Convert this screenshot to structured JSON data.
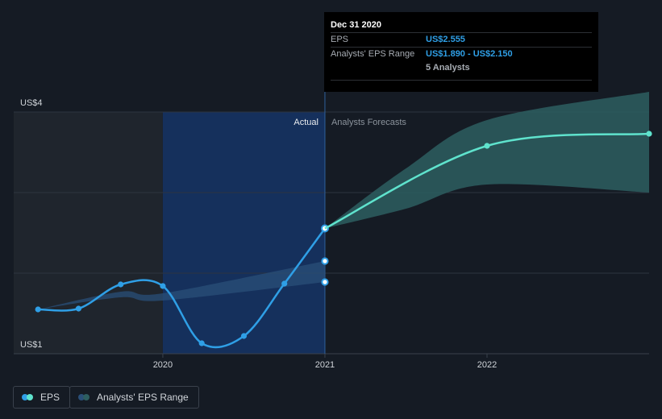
{
  "chart_data": {
    "type": "line",
    "y_axis": {
      "ticks": [
        {
          "label": "US$4",
          "value": 4
        },
        {
          "label": "US$1",
          "value": 1
        }
      ],
      "ylim": [
        1,
        4
      ]
    },
    "x_axis": {
      "ticks": [
        {
          "label": "2020",
          "value": 2020.0
        },
        {
          "label": "2021",
          "value": 2021.0
        },
        {
          "label": "2022",
          "value": 2022.0
        }
      ],
      "xlim": [
        2019.08,
        2023.0
      ]
    },
    "divider_labels": {
      "actual": "Actual",
      "forecast": "Analysts Forecasts"
    },
    "series": [
      {
        "name": "EPS",
        "color": "#2f9fe6",
        "points": [
          {
            "x": 2019.23,
            "y": 1.55
          },
          {
            "x": 2019.48,
            "y": 1.56
          },
          {
            "x": 2019.74,
            "y": 1.86
          },
          {
            "x": 2020.0,
            "y": 1.84
          },
          {
            "x": 2020.24,
            "y": 1.13
          },
          {
            "x": 2020.5,
            "y": 1.22
          },
          {
            "x": 2020.75,
            "y": 1.87
          },
          {
            "x": 2021.0,
            "y": 2.555
          }
        ]
      },
      {
        "name": "EPS",
        "color": "#5fe3cd",
        "points": [
          {
            "x": 2021.0,
            "y": 2.555
          },
          {
            "x": 2022.0,
            "y": 3.58
          },
          {
            "x": 2023.0,
            "y": 3.73
          }
        ]
      }
    ],
    "range_past": {
      "upper": [
        {
          "x": 2019.23,
          "y": 1.55
        },
        {
          "x": 2019.74,
          "y": 1.77
        },
        {
          "x": 2020.0,
          "y": 1.75
        },
        {
          "x": 2021.0,
          "y": 2.15
        }
      ],
      "lower": [
        {
          "x": 2019.23,
          "y": 1.55
        },
        {
          "x": 2019.74,
          "y": 1.7
        },
        {
          "x": 2020.0,
          "y": 1.66
        },
        {
          "x": 2021.0,
          "y": 1.89
        }
      ],
      "markers": [
        {
          "x": 2021.0,
          "y": 2.15
        },
        {
          "x": 2021.0,
          "y": 1.89
        }
      ]
    },
    "range_forecast": {
      "upper": [
        {
          "x": 2021.0,
          "y": 2.555
        },
        {
          "x": 2021.5,
          "y": 3.3
        },
        {
          "x": 2022.0,
          "y": 3.9
        },
        {
          "x": 2023.0,
          "y": 4.25
        }
      ],
      "lower": [
        {
          "x": 2021.0,
          "y": 2.555
        },
        {
          "x": 2021.5,
          "y": 2.8
        },
        {
          "x": 2022.0,
          "y": 3.1
        },
        {
          "x": 2023.0,
          "y": 3.0
        }
      ]
    },
    "colors": {
      "actual_band": "#15305c",
      "past_shade": "#1f252d",
      "forecast_line": "#5fe3cd",
      "forecast_range": "#2d5e60",
      "past_range": "#2a4f78"
    }
  },
  "tooltip": {
    "date": "Dec 31 2020",
    "eps_label": "EPS",
    "eps_value": "US$2.555",
    "range_label": "Analysts' EPS Range",
    "range_value": "US$1.890 - US$2.150",
    "analysts": "5 Analysts"
  },
  "legend": {
    "eps": "EPS",
    "range": "Analysts' EPS Range",
    "eps_colors": [
      "#2f9fe6",
      "#5fe3cd"
    ],
    "range_colors": [
      "#2a4f78",
      "#2d5e60"
    ]
  }
}
